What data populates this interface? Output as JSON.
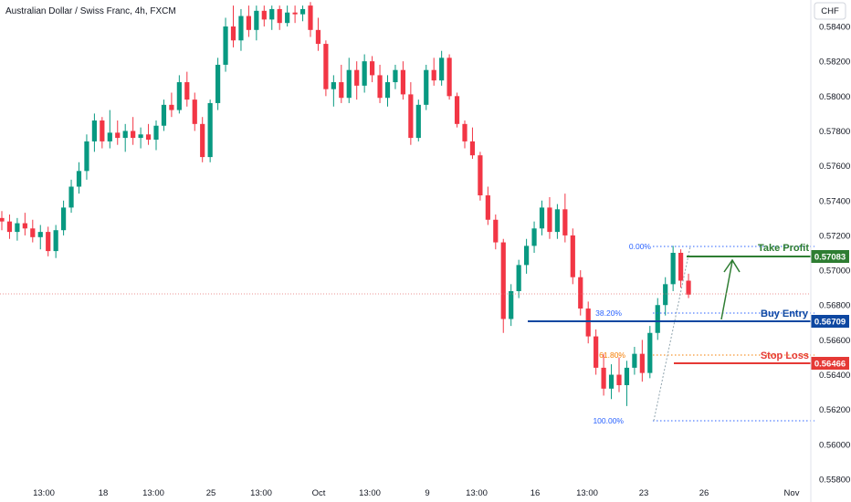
{
  "chart_data": {
    "type": "candlestick",
    "title": "Australian Dollar / Swiss Franc, 4h, FXCM",
    "currency": "CHF",
    "y_ticks": [
      "0.58400",
      "0.58200",
      "0.58000",
      "0.57800",
      "0.57600",
      "0.57400",
      "0.57200",
      "0.57000",
      "0.56800",
      "0.56600",
      "0.56400",
      "0.56200",
      "0.56000",
      "0.55800"
    ],
    "x_ticks": [
      "13:00",
      "18",
      "13:00",
      "25",
      "13:00",
      "Oct",
      "13:00",
      "9",
      "13:00",
      "16",
      "13:00",
      "23",
      "26",
      "Nov"
    ],
    "ylim": [
      0.5578,
      0.5852
    ],
    "levels": {
      "take_profit": {
        "label": "Take Profit",
        "value": "0.57083",
        "color": "#2e7d32"
      },
      "buy_entry": {
        "label": "Buy Entry",
        "value": "0.56709",
        "color": "#1a237e"
      },
      "stop_loss": {
        "label": "Stop Loss",
        "value": "0.56466",
        "color": "#e53935"
      }
    },
    "fib": [
      {
        "label": "0.00%",
        "color": "#2962ff"
      },
      {
        "label": "38.20%",
        "color": "#2962ff"
      },
      {
        "label": "61.80%",
        "color": "#f57c00"
      },
      {
        "label": "100.00%",
        "color": "#2962ff"
      }
    ],
    "candles": [
      [
        0.573,
        0.5734,
        0.5723,
        0.5728
      ],
      [
        0.5728,
        0.5732,
        0.5718,
        0.5722
      ],
      [
        0.5722,
        0.573,
        0.5717,
        0.5727
      ],
      [
        0.5727,
        0.5733,
        0.572,
        0.5724
      ],
      [
        0.5724,
        0.5729,
        0.5716,
        0.5719
      ],
      [
        0.5719,
        0.5726,
        0.5712,
        0.5722
      ],
      [
        0.5722,
        0.5725,
        0.5708,
        0.5711
      ],
      [
        0.5711,
        0.5726,
        0.5707,
        0.5723
      ],
      [
        0.5723,
        0.574,
        0.572,
        0.5736
      ],
      [
        0.5736,
        0.5752,
        0.5733,
        0.5748
      ],
      [
        0.5748,
        0.5762,
        0.5744,
        0.5757
      ],
      [
        0.5757,
        0.5778,
        0.5752,
        0.5774
      ],
      [
        0.5774,
        0.579,
        0.5768,
        0.5786
      ],
      [
        0.5786,
        0.5788,
        0.577,
        0.5774
      ],
      [
        0.5774,
        0.5792,
        0.577,
        0.5779
      ],
      [
        0.5779,
        0.5786,
        0.5772,
        0.5776
      ],
      [
        0.5776,
        0.5784,
        0.5768,
        0.578
      ],
      [
        0.578,
        0.5788,
        0.5772,
        0.5776
      ],
      [
        0.5776,
        0.5782,
        0.577,
        0.5778
      ],
      [
        0.5778,
        0.5784,
        0.5772,
        0.5775
      ],
      [
        0.5775,
        0.5786,
        0.5769,
        0.5783
      ],
      [
        0.5783,
        0.5798,
        0.578,
        0.5795
      ],
      [
        0.5795,
        0.5802,
        0.5788,
        0.5792
      ],
      [
        0.5792,
        0.5812,
        0.579,
        0.5808
      ],
      [
        0.5808,
        0.5814,
        0.5794,
        0.5798
      ],
      [
        0.5798,
        0.5802,
        0.578,
        0.5784
      ],
      [
        0.5784,
        0.5788,
        0.5762,
        0.5765
      ],
      [
        0.5765,
        0.5798,
        0.5762,
        0.5796
      ],
      [
        0.5796,
        0.5822,
        0.5792,
        0.5818
      ],
      [
        0.5818,
        0.5845,
        0.5814,
        0.584
      ],
      [
        0.584,
        0.5852,
        0.5828,
        0.5832
      ],
      [
        0.5832,
        0.585,
        0.5826,
        0.5846
      ],
      [
        0.5846,
        0.5852,
        0.5834,
        0.5838
      ],
      [
        0.5838,
        0.5852,
        0.5832,
        0.5849
      ],
      [
        0.5849,
        0.5852,
        0.584,
        0.5844
      ],
      [
        0.5844,
        0.5852,
        0.5838,
        0.585
      ],
      [
        0.585,
        0.5852,
        0.5838,
        0.5842
      ],
      [
        0.5842,
        0.5852,
        0.584,
        0.5848
      ],
      [
        0.5848,
        0.5852,
        0.5842,
        0.5847
      ],
      [
        0.5847,
        0.5852,
        0.5843,
        0.585
      ],
      [
        0.5852,
        0.5854,
        0.5834,
        0.5838
      ],
      [
        0.5838,
        0.5845,
        0.5826,
        0.583
      ],
      [
        0.583,
        0.5832,
        0.58,
        0.5804
      ],
      [
        0.5804,
        0.5812,
        0.5794,
        0.5808
      ],
      [
        0.5808,
        0.5818,
        0.5796,
        0.5799
      ],
      [
        0.5799,
        0.5822,
        0.5796,
        0.5815
      ],
      [
        0.5815,
        0.582,
        0.5798,
        0.5806
      ],
      [
        0.5806,
        0.5824,
        0.5802,
        0.582
      ],
      [
        0.582,
        0.5823,
        0.5808,
        0.5812
      ],
      [
        0.5812,
        0.5818,
        0.5796,
        0.5799
      ],
      [
        0.5799,
        0.5812,
        0.5794,
        0.5808
      ],
      [
        0.5808,
        0.5818,
        0.5804,
        0.5815
      ],
      [
        0.5815,
        0.582,
        0.5798,
        0.5801
      ],
      [
        0.5801,
        0.5808,
        0.5772,
        0.5776
      ],
      [
        0.5776,
        0.5798,
        0.5774,
        0.5795
      ],
      [
        0.5795,
        0.5818,
        0.5792,
        0.5815
      ],
      [
        0.5815,
        0.5822,
        0.5806,
        0.5809
      ],
      [
        0.5809,
        0.5826,
        0.5806,
        0.5822
      ],
      [
        0.5822,
        0.5824,
        0.5798,
        0.58
      ],
      [
        0.58,
        0.5802,
        0.5782,
        0.5784
      ],
      [
        0.5784,
        0.5786,
        0.577,
        0.5774
      ],
      [
        0.5774,
        0.5782,
        0.5764,
        0.5766
      ],
      [
        0.5766,
        0.5768,
        0.574,
        0.5743
      ],
      [
        0.5743,
        0.5748,
        0.5726,
        0.5729
      ],
      [
        0.5729,
        0.5732,
        0.5712,
        0.5716
      ],
      [
        0.5716,
        0.5718,
        0.5664,
        0.5672
      ],
      [
        0.5672,
        0.5692,
        0.5668,
        0.5688
      ],
      [
        0.5688,
        0.5706,
        0.5684,
        0.5703
      ],
      [
        0.5703,
        0.5718,
        0.5698,
        0.5714
      ],
      [
        0.5714,
        0.5728,
        0.571,
        0.5724
      ],
      [
        0.5724,
        0.574,
        0.572,
        0.5736
      ],
      [
        0.5736,
        0.5742,
        0.5718,
        0.5722
      ],
      [
        0.5722,
        0.5738,
        0.5718,
        0.5735
      ],
      [
        0.5735,
        0.5744,
        0.5716,
        0.572
      ],
      [
        0.572,
        0.5724,
        0.5692,
        0.5696
      ],
      [
        0.5696,
        0.57,
        0.5674,
        0.5678
      ],
      [
        0.5678,
        0.5682,
        0.5658,
        0.5662
      ],
      [
        0.5662,
        0.5666,
        0.564,
        0.5644
      ],
      [
        0.5644,
        0.5652,
        0.5628,
        0.5632
      ],
      [
        0.5632,
        0.5646,
        0.5626,
        0.564
      ],
      [
        0.564,
        0.565,
        0.563,
        0.5634
      ],
      [
        0.5634,
        0.5648,
        0.5622,
        0.5644
      ],
      [
        0.5644,
        0.5656,
        0.564,
        0.5652
      ],
      [
        0.5652,
        0.566,
        0.5636,
        0.5641
      ],
      [
        0.5641,
        0.5668,
        0.5638,
        0.5664
      ],
      [
        0.5664,
        0.5684,
        0.566,
        0.568
      ],
      [
        0.568,
        0.5696,
        0.5674,
        0.5692
      ],
      [
        0.5692,
        0.5714,
        0.5688,
        0.571
      ],
      [
        0.571,
        0.5712,
        0.569,
        0.5694
      ],
      [
        0.5694,
        0.5698,
        0.5684,
        0.5686
      ]
    ]
  }
}
